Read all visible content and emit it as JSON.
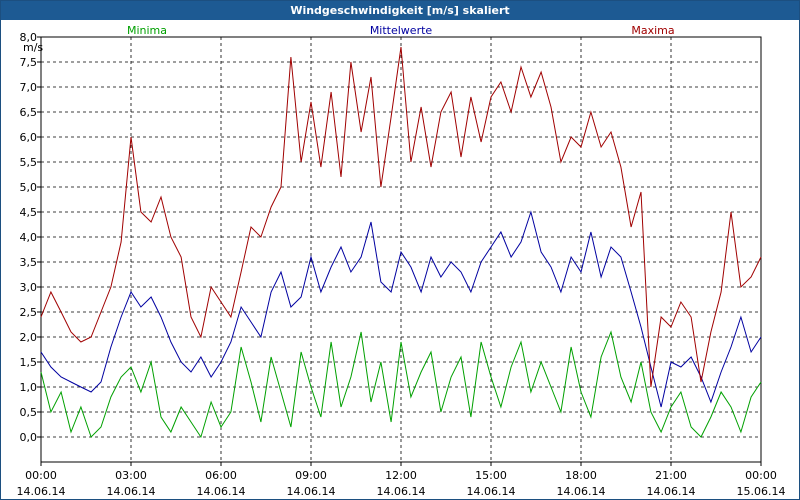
{
  "chart_data": {
    "type": "line",
    "title": "Windgeschwindigkeit [m/s] skaliert",
    "ylabel": "m/s",
    "ylim": [
      -0.5,
      8.0
    ],
    "yticks": [
      "8,0",
      "7,5",
      "7,0",
      "6,5",
      "6,0",
      "5,5",
      "5,0",
      "4,5",
      "4,0",
      "3,5",
      "3,0",
      "2,5",
      "2,0",
      "1,5",
      "1,0",
      "0,5",
      "0,0"
    ],
    "ytick_values": [
      8.0,
      7.5,
      7.0,
      6.5,
      6.0,
      5.5,
      5.0,
      4.5,
      4.0,
      3.5,
      3.0,
      2.5,
      2.0,
      1.5,
      1.0,
      0.5,
      0.0
    ],
    "xlim": [
      0,
      24
    ],
    "xticks": [
      {
        "time": "00:00",
        "date": "14.06.14",
        "hour": 0
      },
      {
        "time": "03:00",
        "date": "14.06.14",
        "hour": 3
      },
      {
        "time": "06:00",
        "date": "14.06.14",
        "hour": 6
      },
      {
        "time": "09:00",
        "date": "14.06.14",
        "hour": 9
      },
      {
        "time": "12:00",
        "date": "14.06.14",
        "hour": 12
      },
      {
        "time": "15:00",
        "date": "14.06.14",
        "hour": 15
      },
      {
        "time": "18:00",
        "date": "14.06.14",
        "hour": 18
      },
      {
        "time": "21:00",
        "date": "14.06.14",
        "hour": 21
      },
      {
        "time": "00:00",
        "date": "15.06.14",
        "hour": 24
      }
    ],
    "legend_position": "top",
    "series": [
      {
        "name": "Minima",
        "color": "#00a000",
        "x": [
          0,
          0.33,
          0.67,
          1,
          1.33,
          1.67,
          2,
          2.33,
          2.67,
          3,
          3.33,
          3.67,
          4,
          4.33,
          4.67,
          5,
          5.33,
          5.67,
          6,
          6.33,
          6.67,
          7,
          7.33,
          7.67,
          8,
          8.33,
          8.67,
          9,
          9.33,
          9.67,
          10,
          10.33,
          10.67,
          11,
          11.33,
          11.67,
          12,
          12.33,
          12.67,
          13,
          13.33,
          13.67,
          14,
          14.33,
          14.67,
          15,
          15.33,
          15.67,
          16,
          16.33,
          16.67,
          17,
          17.33,
          17.67,
          18,
          18.33,
          18.67,
          19,
          19.33,
          19.67,
          20,
          20.33,
          20.67,
          21,
          21.33,
          21.67,
          22,
          22.33,
          22.67,
          23,
          23.33,
          23.67,
          24
        ],
        "y": [
          1.3,
          0.5,
          0.9,
          0.1,
          0.6,
          0.0,
          0.2,
          0.8,
          1.2,
          1.4,
          0.9,
          1.5,
          0.4,
          0.1,
          0.6,
          0.3,
          0.0,
          0.7,
          0.2,
          0.5,
          1.8,
          1.1,
          0.3,
          1.6,
          0.9,
          0.2,
          1.7,
          1.0,
          0.4,
          1.9,
          0.6,
          1.2,
          2.1,
          0.7,
          1.5,
          0.3,
          1.9,
          0.8,
          1.3,
          1.7,
          0.5,
          1.2,
          1.6,
          0.4,
          1.9,
          1.2,
          0.6,
          1.4,
          1.9,
          0.9,
          1.5,
          1.0,
          0.5,
          1.8,
          0.9,
          0.4,
          1.6,
          2.1,
          1.2,
          0.7,
          1.5,
          0.5,
          0.1,
          0.6,
          0.9,
          0.2,
          0.0,
          0.4,
          0.9,
          0.6,
          0.1,
          0.8,
          1.1
        ]
      },
      {
        "name": "Mittelwerte",
        "color": "#0000a0",
        "x": [
          0,
          0.33,
          0.67,
          1,
          1.33,
          1.67,
          2,
          2.33,
          2.67,
          3,
          3.33,
          3.67,
          4,
          4.33,
          4.67,
          5,
          5.33,
          5.67,
          6,
          6.33,
          6.67,
          7,
          7.33,
          7.67,
          8,
          8.33,
          8.67,
          9,
          9.33,
          9.67,
          10,
          10.33,
          10.67,
          11,
          11.33,
          11.67,
          12,
          12.33,
          12.67,
          13,
          13.33,
          13.67,
          14,
          14.33,
          14.67,
          15,
          15.33,
          15.67,
          16,
          16.33,
          16.67,
          17,
          17.33,
          17.67,
          18,
          18.33,
          18.67,
          19,
          19.33,
          19.67,
          20,
          20.33,
          20.67,
          21,
          21.33,
          21.67,
          22,
          22.33,
          22.67,
          23,
          23.33,
          23.67,
          24
        ],
        "y": [
          1.7,
          1.4,
          1.2,
          1.1,
          1.0,
          0.9,
          1.1,
          1.8,
          2.4,
          2.9,
          2.6,
          2.8,
          2.4,
          1.9,
          1.5,
          1.3,
          1.6,
          1.2,
          1.5,
          1.9,
          2.6,
          2.3,
          2.0,
          2.9,
          3.3,
          2.6,
          2.8,
          3.6,
          2.9,
          3.4,
          3.8,
          3.3,
          3.6,
          4.3,
          3.1,
          2.9,
          3.7,
          3.4,
          2.9,
          3.6,
          3.2,
          3.5,
          3.3,
          2.9,
          3.5,
          3.8,
          4.1,
          3.6,
          3.9,
          4.5,
          3.7,
          3.4,
          2.9,
          3.6,
          3.3,
          4.1,
          3.2,
          3.8,
          3.6,
          2.9,
          2.2,
          1.4,
          0.6,
          1.5,
          1.4,
          1.6,
          1.2,
          0.7,
          1.3,
          1.8,
          2.4,
          1.7,
          2.0
        ]
      },
      {
        "name": "Maxima",
        "color": "#a00000",
        "x": [
          0,
          0.33,
          0.67,
          1,
          1.33,
          1.67,
          2,
          2.33,
          2.67,
          3,
          3.33,
          3.67,
          4,
          4.33,
          4.67,
          5,
          5.33,
          5.67,
          6,
          6.33,
          6.67,
          7,
          7.33,
          7.67,
          8,
          8.33,
          8.67,
          9,
          9.33,
          9.67,
          10,
          10.33,
          10.67,
          11,
          11.33,
          11.67,
          12,
          12.33,
          12.67,
          13,
          13.33,
          13.67,
          14,
          14.33,
          14.67,
          15,
          15.33,
          15.67,
          16,
          16.33,
          16.67,
          17,
          17.33,
          17.67,
          18,
          18.33,
          18.67,
          19,
          19.33,
          19.67,
          20,
          20.33,
          20.67,
          21,
          21.33,
          21.67,
          22,
          22.33,
          22.67,
          23,
          23.33,
          23.67,
          24
        ],
        "y": [
          2.4,
          2.9,
          2.5,
          2.1,
          1.9,
          2.0,
          2.5,
          3.0,
          3.9,
          6.0,
          4.5,
          4.3,
          4.8,
          4.0,
          3.6,
          2.4,
          2.0,
          3.0,
          2.7,
          2.4,
          3.3,
          4.2,
          4.0,
          4.6,
          5.0,
          7.6,
          5.5,
          6.7,
          5.4,
          6.9,
          5.2,
          7.5,
          6.1,
          7.2,
          5.0,
          6.4,
          7.8,
          5.5,
          6.6,
          5.4,
          6.5,
          6.9,
          5.6,
          6.8,
          5.9,
          6.8,
          7.1,
          6.5,
          7.4,
          6.8,
          7.3,
          6.6,
          5.5,
          6.0,
          5.8,
          6.5,
          5.8,
          6.1,
          5.4,
          4.2,
          4.9,
          1.0,
          2.4,
          2.2,
          2.7,
          2.4,
          1.1,
          2.1,
          2.9,
          4.5,
          3.0,
          3.2,
          3.6
        ]
      }
    ]
  }
}
